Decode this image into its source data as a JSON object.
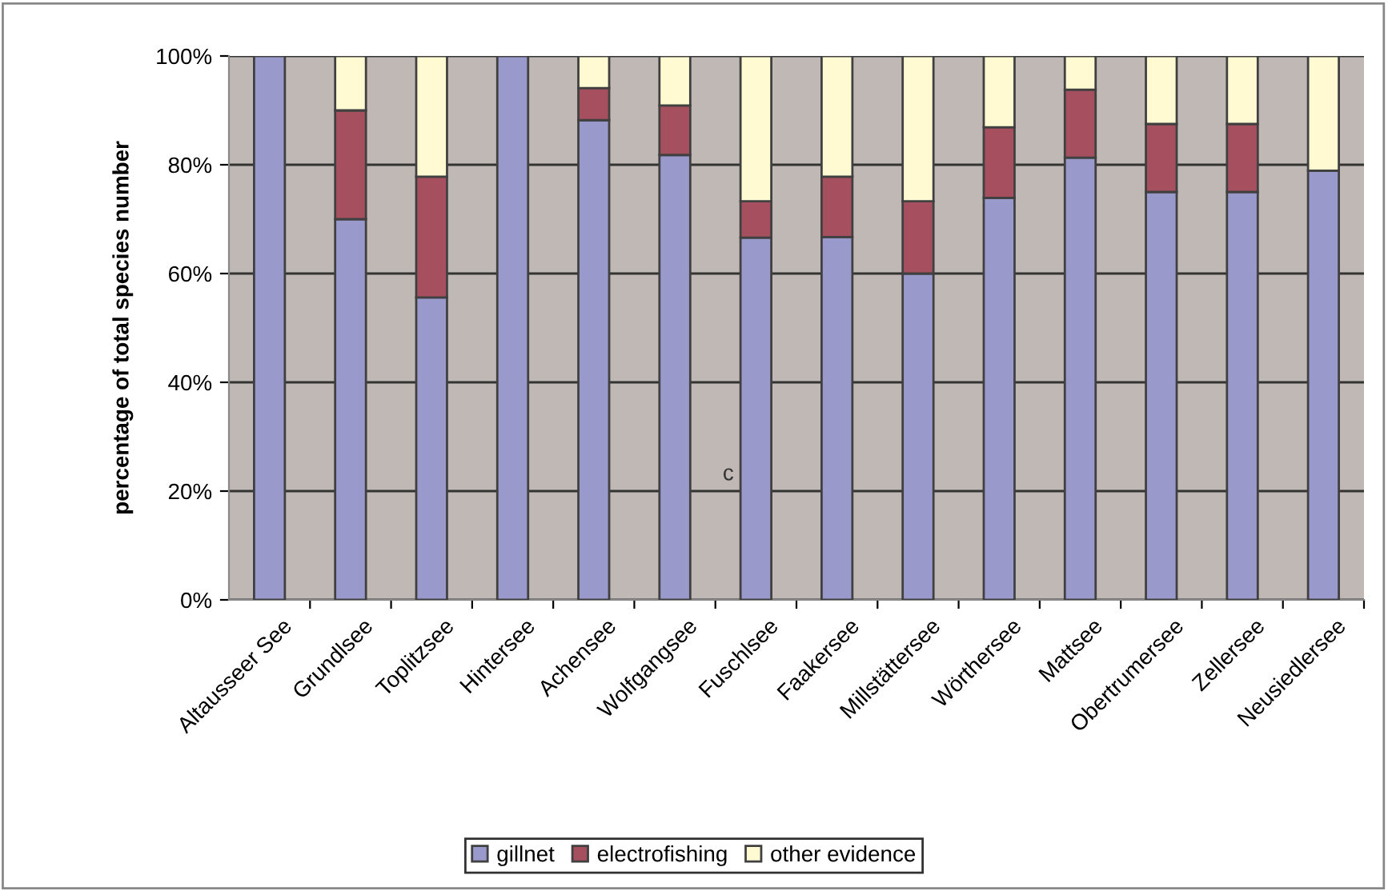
{
  "chart_data": {
    "type": "bar",
    "stacked": true,
    "ylabel": "percentage of total species number",
    "categories": [
      "Altausseer See",
      "Grundlsee",
      "Toplitzsee",
      "Hintersee",
      "Achensee",
      "Wolfgangsee",
      "Fuschlsee",
      "Faakersee",
      "Millstättersee",
      "Wörthersee",
      "Mattsee",
      "Obertrumersee",
      "Zellersee",
      "Neusiedlersee"
    ],
    "series": [
      {
        "name": "gillnet",
        "color": "#9999cc",
        "values": [
          100,
          70,
          55.6,
          100,
          88.2,
          81.8,
          66.6,
          66.7,
          60,
          73.9,
          81.3,
          75,
          75,
          78.9
        ]
      },
      {
        "name": "electrofishing",
        "color": "#a6505f",
        "values": [
          null,
          20,
          22.2,
          null,
          5.9,
          9.1,
          6.7,
          11.1,
          13.3,
          13.0,
          12.5,
          12.5,
          12.5,
          null
        ]
      },
      {
        "name": "other evidence",
        "color": "#fffad2",
        "values": [
          null,
          10,
          22.2,
          null,
          5.9,
          9.1,
          26.7,
          22.2,
          26.7,
          13.1,
          6.2,
          12.5,
          12.5,
          21.1
        ]
      }
    ],
    "ylim": [
      0,
      100
    ],
    "yticks": [
      {
        "value": 0,
        "label": "0%"
      },
      {
        "value": 20,
        "label": "20%"
      },
      {
        "value": 40,
        "label": "40%"
      },
      {
        "value": 60,
        "label": "60%"
      },
      {
        "value": 80,
        "label": "80%"
      },
      {
        "value": 100,
        "label": "100%"
      }
    ],
    "grid": "y",
    "legend": "bottom",
    "annotations": [
      "c"
    ]
  }
}
